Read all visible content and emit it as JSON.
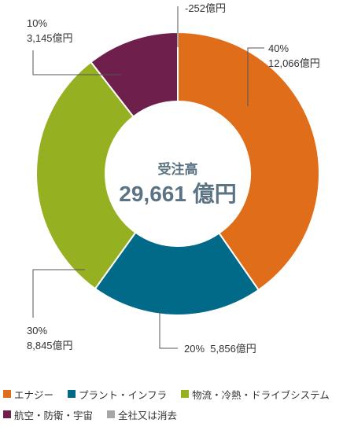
{
  "chart_data": {
    "type": "donut",
    "center_title": "受注高",
    "center_value": "29,661 億円",
    "slices": [
      {
        "name": "エナジー",
        "value": 12066,
        "value_label": "12,066億円",
        "percent_label": "40%",
        "color": "#df6d1a"
      },
      {
        "name": "プラント・インフラ",
        "value": 5856,
        "value_label": "5,856億円",
        "percent_label": "20%",
        "color": "#006a88"
      },
      {
        "name": "物流・冷熱・ドライブシステム",
        "value": 8845,
        "value_label": "8,845億円",
        "percent_label": "30%",
        "color": "#95b021"
      },
      {
        "name": "航空・防衛・宇宙",
        "value": 3145,
        "value_label": "3,145億円",
        "percent_label": "10%",
        "color": "#6f1f4c"
      },
      {
        "name": "全社又は消去",
        "value": -252,
        "value_label": "-252億円",
        "percent_label": "",
        "color": "#a6a6a6"
      }
    ]
  }
}
